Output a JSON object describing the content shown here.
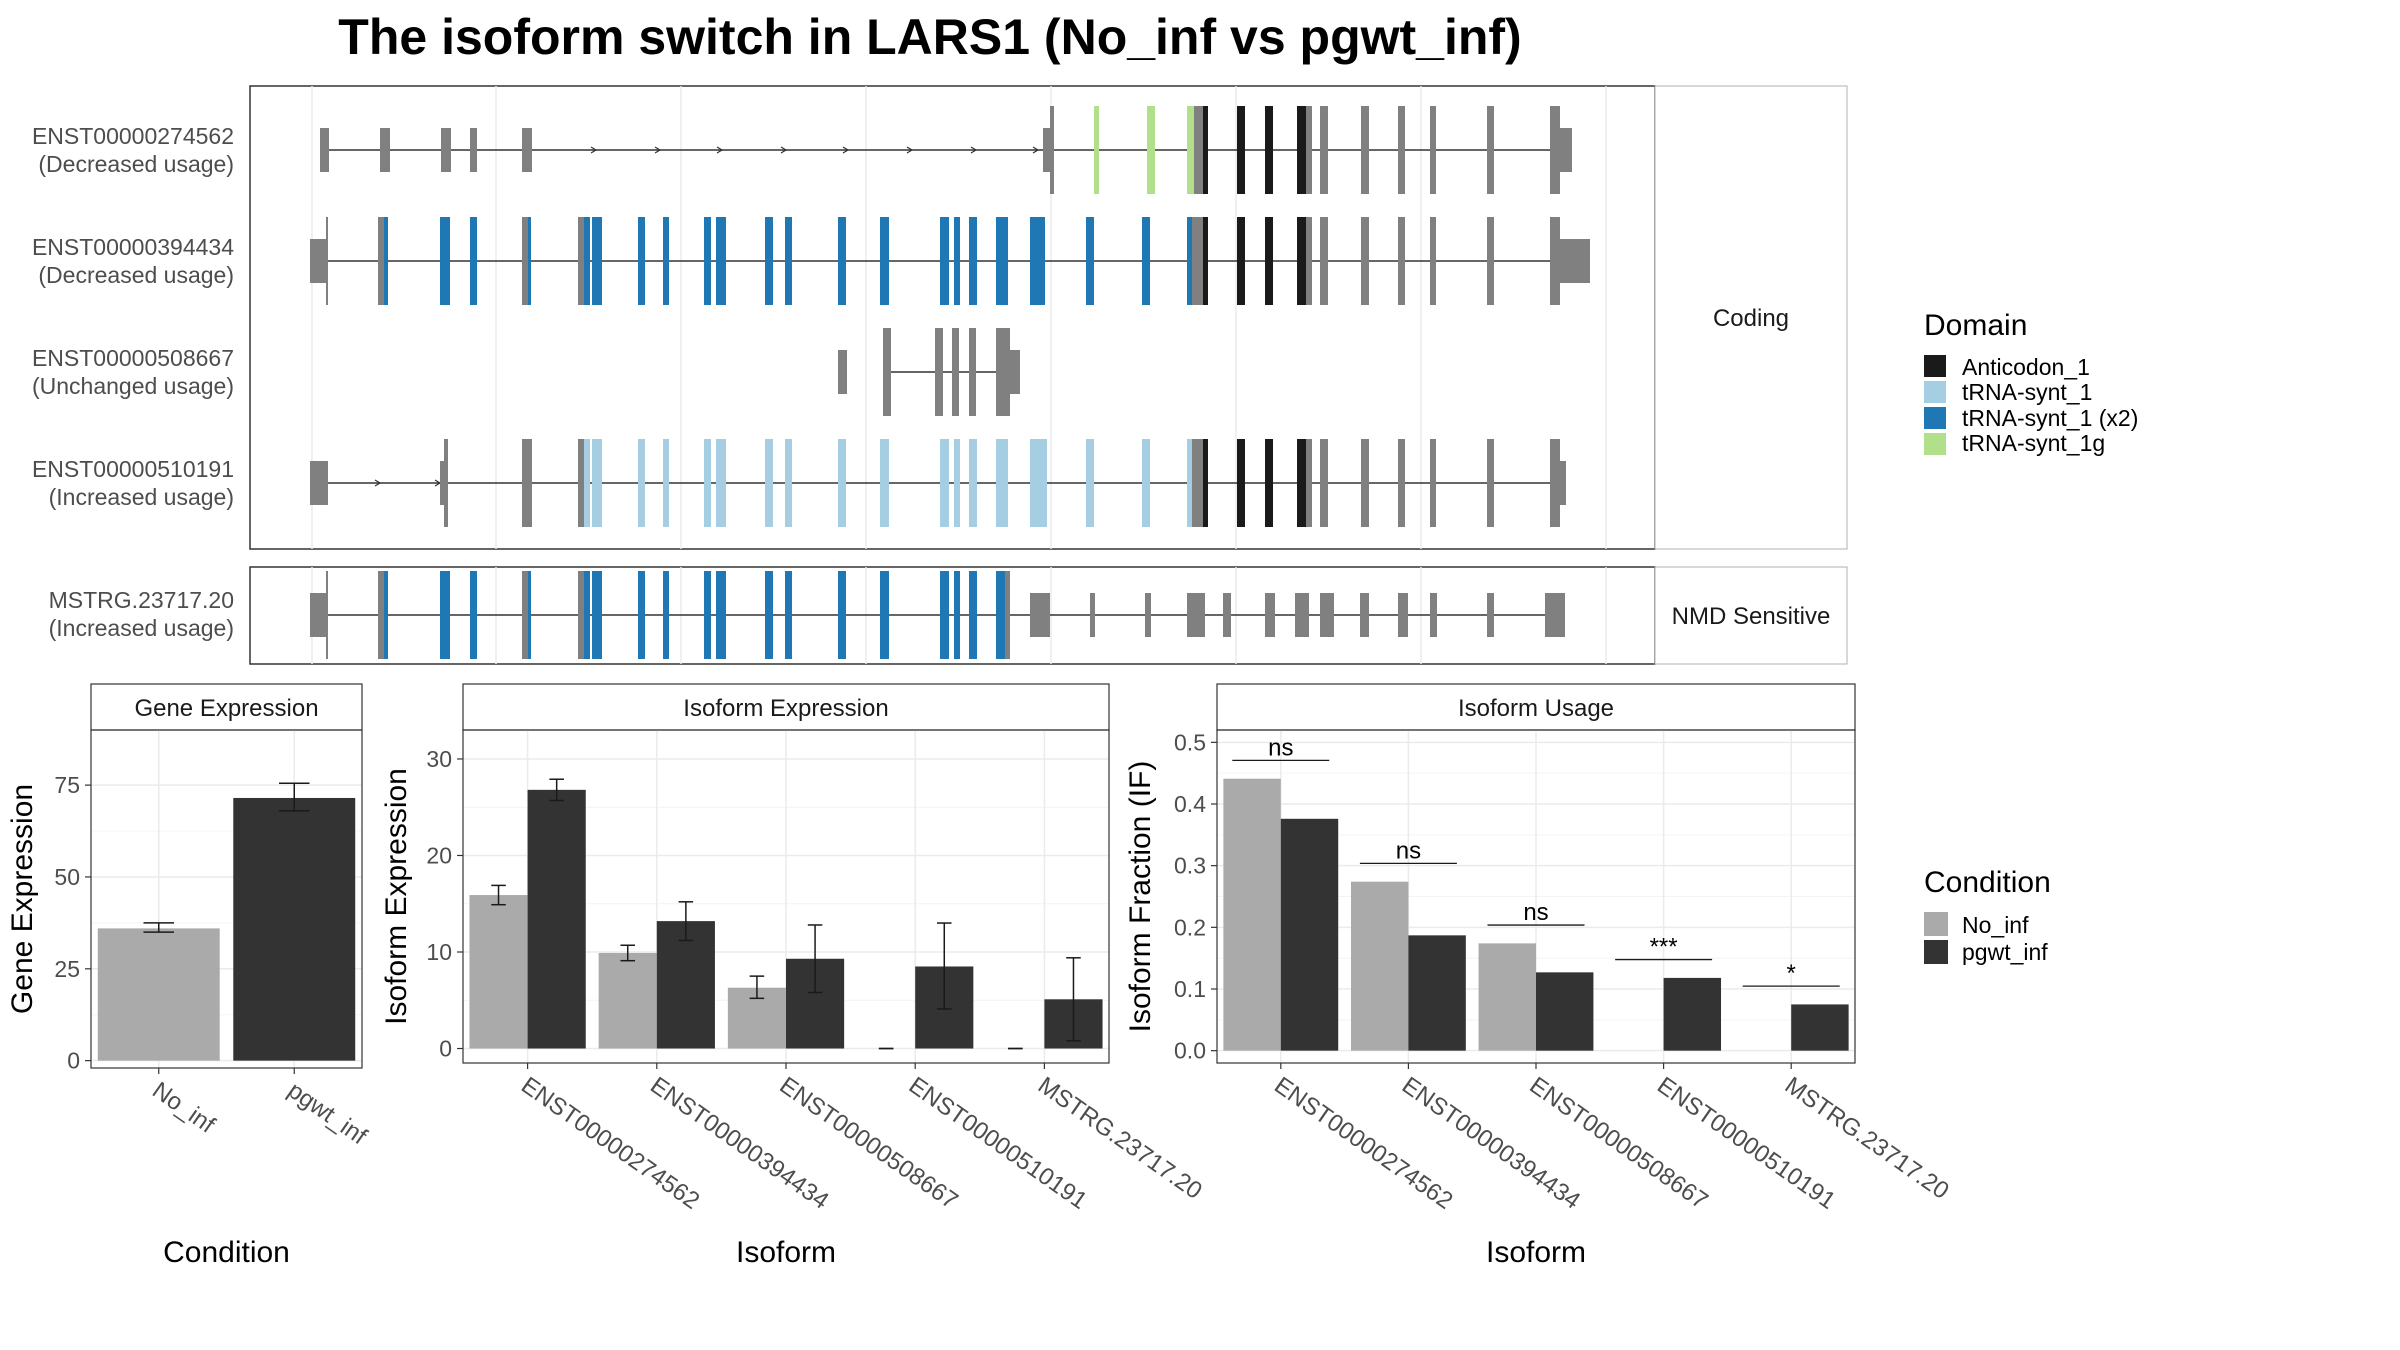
{
  "title": "The isoform switch in LARS1 (No_inf vs pgwt_inf)",
  "colors": {
    "anticodon": "#1a1a1a",
    "trna_light": "#a6cee3",
    "trna_dark": "#1f78b4",
    "trna_1g": "#b2df8a",
    "exon_grey": "#808080",
    "no_inf": "#aaaaaa",
    "pgwt_inf": "#333333"
  },
  "structure": {
    "isoforms": [
      {
        "id": "ENST00000274562",
        "usage": "(Decreased usage)",
        "group": "Coding"
      },
      {
        "id": "ENST00000394434",
        "usage": "(Decreased usage)",
        "group": "Coding"
      },
      {
        "id": "ENST00000508667",
        "usage": "(Unchanged usage)",
        "group": "Coding"
      },
      {
        "id": "ENST00000510191",
        "usage": "(Increased usage)",
        "group": "Coding"
      },
      {
        "id": "MSTRG.23717.20",
        "usage": "(Increased usage)",
        "group": "NMD Sensitive"
      }
    ],
    "strip_coding": "Coding",
    "strip_nmd": "NMD Sensitive"
  },
  "domain_legend": {
    "title": "Domain",
    "items": [
      {
        "label": "Anticodon_1",
        "color": "#1a1a1a"
      },
      {
        "label": "tRNA-synt_1",
        "color": "#a6cee3"
      },
      {
        "label": "tRNA-synt_1 (x2)",
        "color": "#1f78b4"
      },
      {
        "label": "tRNA-synt_1g",
        "color": "#b2df8a"
      }
    ]
  },
  "condition_legend": {
    "title": "Condition",
    "items": [
      {
        "label": "No_inf",
        "color": "#aaaaaa"
      },
      {
        "label": "pgwt_inf",
        "color": "#333333"
      }
    ]
  },
  "chart_data": [
    {
      "type": "bar",
      "title": "Gene Expression",
      "xlabel": "Condition",
      "ylabel": "Gene Expression",
      "categories": [
        "No_inf",
        "pgwt_inf"
      ],
      "values": [
        36,
        71.5
      ],
      "errors": [
        [
          35,
          37.5
        ],
        [
          68,
          75.5
        ]
      ],
      "ylim": [
        -2,
        90
      ],
      "yticks": [
        0,
        25,
        50,
        75
      ],
      "grid": true
    },
    {
      "type": "bar",
      "title": "Isoform Expression",
      "xlabel": "Isoform",
      "ylabel": "Isoform Expression",
      "categories": [
        "ENST00000274562",
        "ENST00000394434",
        "ENST00000508667",
        "ENST00000510191",
        "MSTRG.23717.20"
      ],
      "series": [
        {
          "name": "No_inf",
          "values": [
            15.9,
            9.9,
            6.3,
            0,
            0
          ],
          "errors": [
            [
              14.9,
              16.9
            ],
            [
              9.1,
              10.7
            ],
            [
              5.2,
              7.5
            ],
            [
              0,
              0
            ],
            [
              0,
              0
            ]
          ]
        },
        {
          "name": "pgwt_inf",
          "values": [
            26.8,
            13.2,
            9.3,
            8.5,
            5.1
          ],
          "errors": [
            [
              25.7,
              27.9
            ],
            [
              11.2,
              15.2
            ],
            [
              5.8,
              12.8
            ],
            [
              4.1,
              13.0
            ],
            [
              0.8,
              9.4
            ]
          ]
        }
      ],
      "ylim": [
        -1.5,
        33
      ],
      "yticks": [
        0,
        10,
        20,
        30
      ],
      "grid": true
    },
    {
      "type": "bar",
      "title": "Isoform Usage",
      "xlabel": "Isoform",
      "ylabel": "Isoform Fraction (IF)",
      "categories": [
        "ENST00000274562",
        "ENST00000394434",
        "ENST00000508667",
        "ENST00000510191",
        "MSTRG.23717.20"
      ],
      "series": [
        {
          "name": "No_inf",
          "values": [
            0.441,
            0.274,
            0.174,
            0,
            0
          ]
        },
        {
          "name": "pgwt_inf",
          "values": [
            0.376,
            0.187,
            0.127,
            0.118,
            0.075
          ]
        }
      ],
      "significance": [
        "ns",
        "ns",
        "ns",
        "***",
        "*"
      ],
      "ylim": [
        -0.02,
        0.52
      ],
      "yticks": [
        0.0,
        0.1,
        0.2,
        0.3,
        0.4,
        0.5
      ],
      "grid": true
    }
  ]
}
